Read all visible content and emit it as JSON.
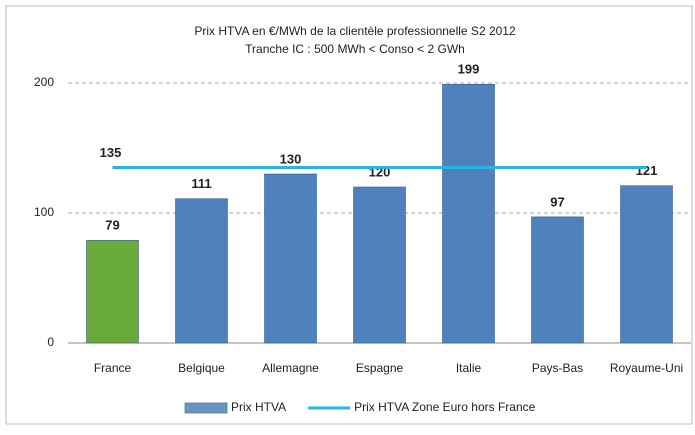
{
  "chart_data": {
    "type": "bar",
    "title": "Prix HTVA en €/MWh de la clientèle professionnelle S2 2012",
    "subtitle": "Tranche IC : 500 MWh < Conso < 2 GWh",
    "categories": [
      "France",
      "Belgique",
      "Allemagne",
      "Espagne",
      "Italie",
      "Pays-Bas",
      "Royaume-Uni"
    ],
    "series": [
      {
        "name": "Prix HTVA",
        "color": "#4f81bd",
        "colors": [
          "#6aaa3a",
          "#4f81bd",
          "#4f81bd",
          "#4f81bd",
          "#4f81bd",
          "#4f81bd",
          "#4f81bd"
        ],
        "values": [
          79,
          111,
          130,
          120,
          199,
          97,
          121
        ]
      },
      {
        "name": "Prix HTVA Zone Euro hors France",
        "type": "line",
        "color": "#29b4e6",
        "values": [
          135,
          135,
          135,
          135,
          135,
          135,
          135
        ]
      }
    ],
    "ylim": [
      0,
      200
    ],
    "yticks": [
      0,
      100,
      200
    ],
    "grid": true,
    "legend": "bottom"
  }
}
